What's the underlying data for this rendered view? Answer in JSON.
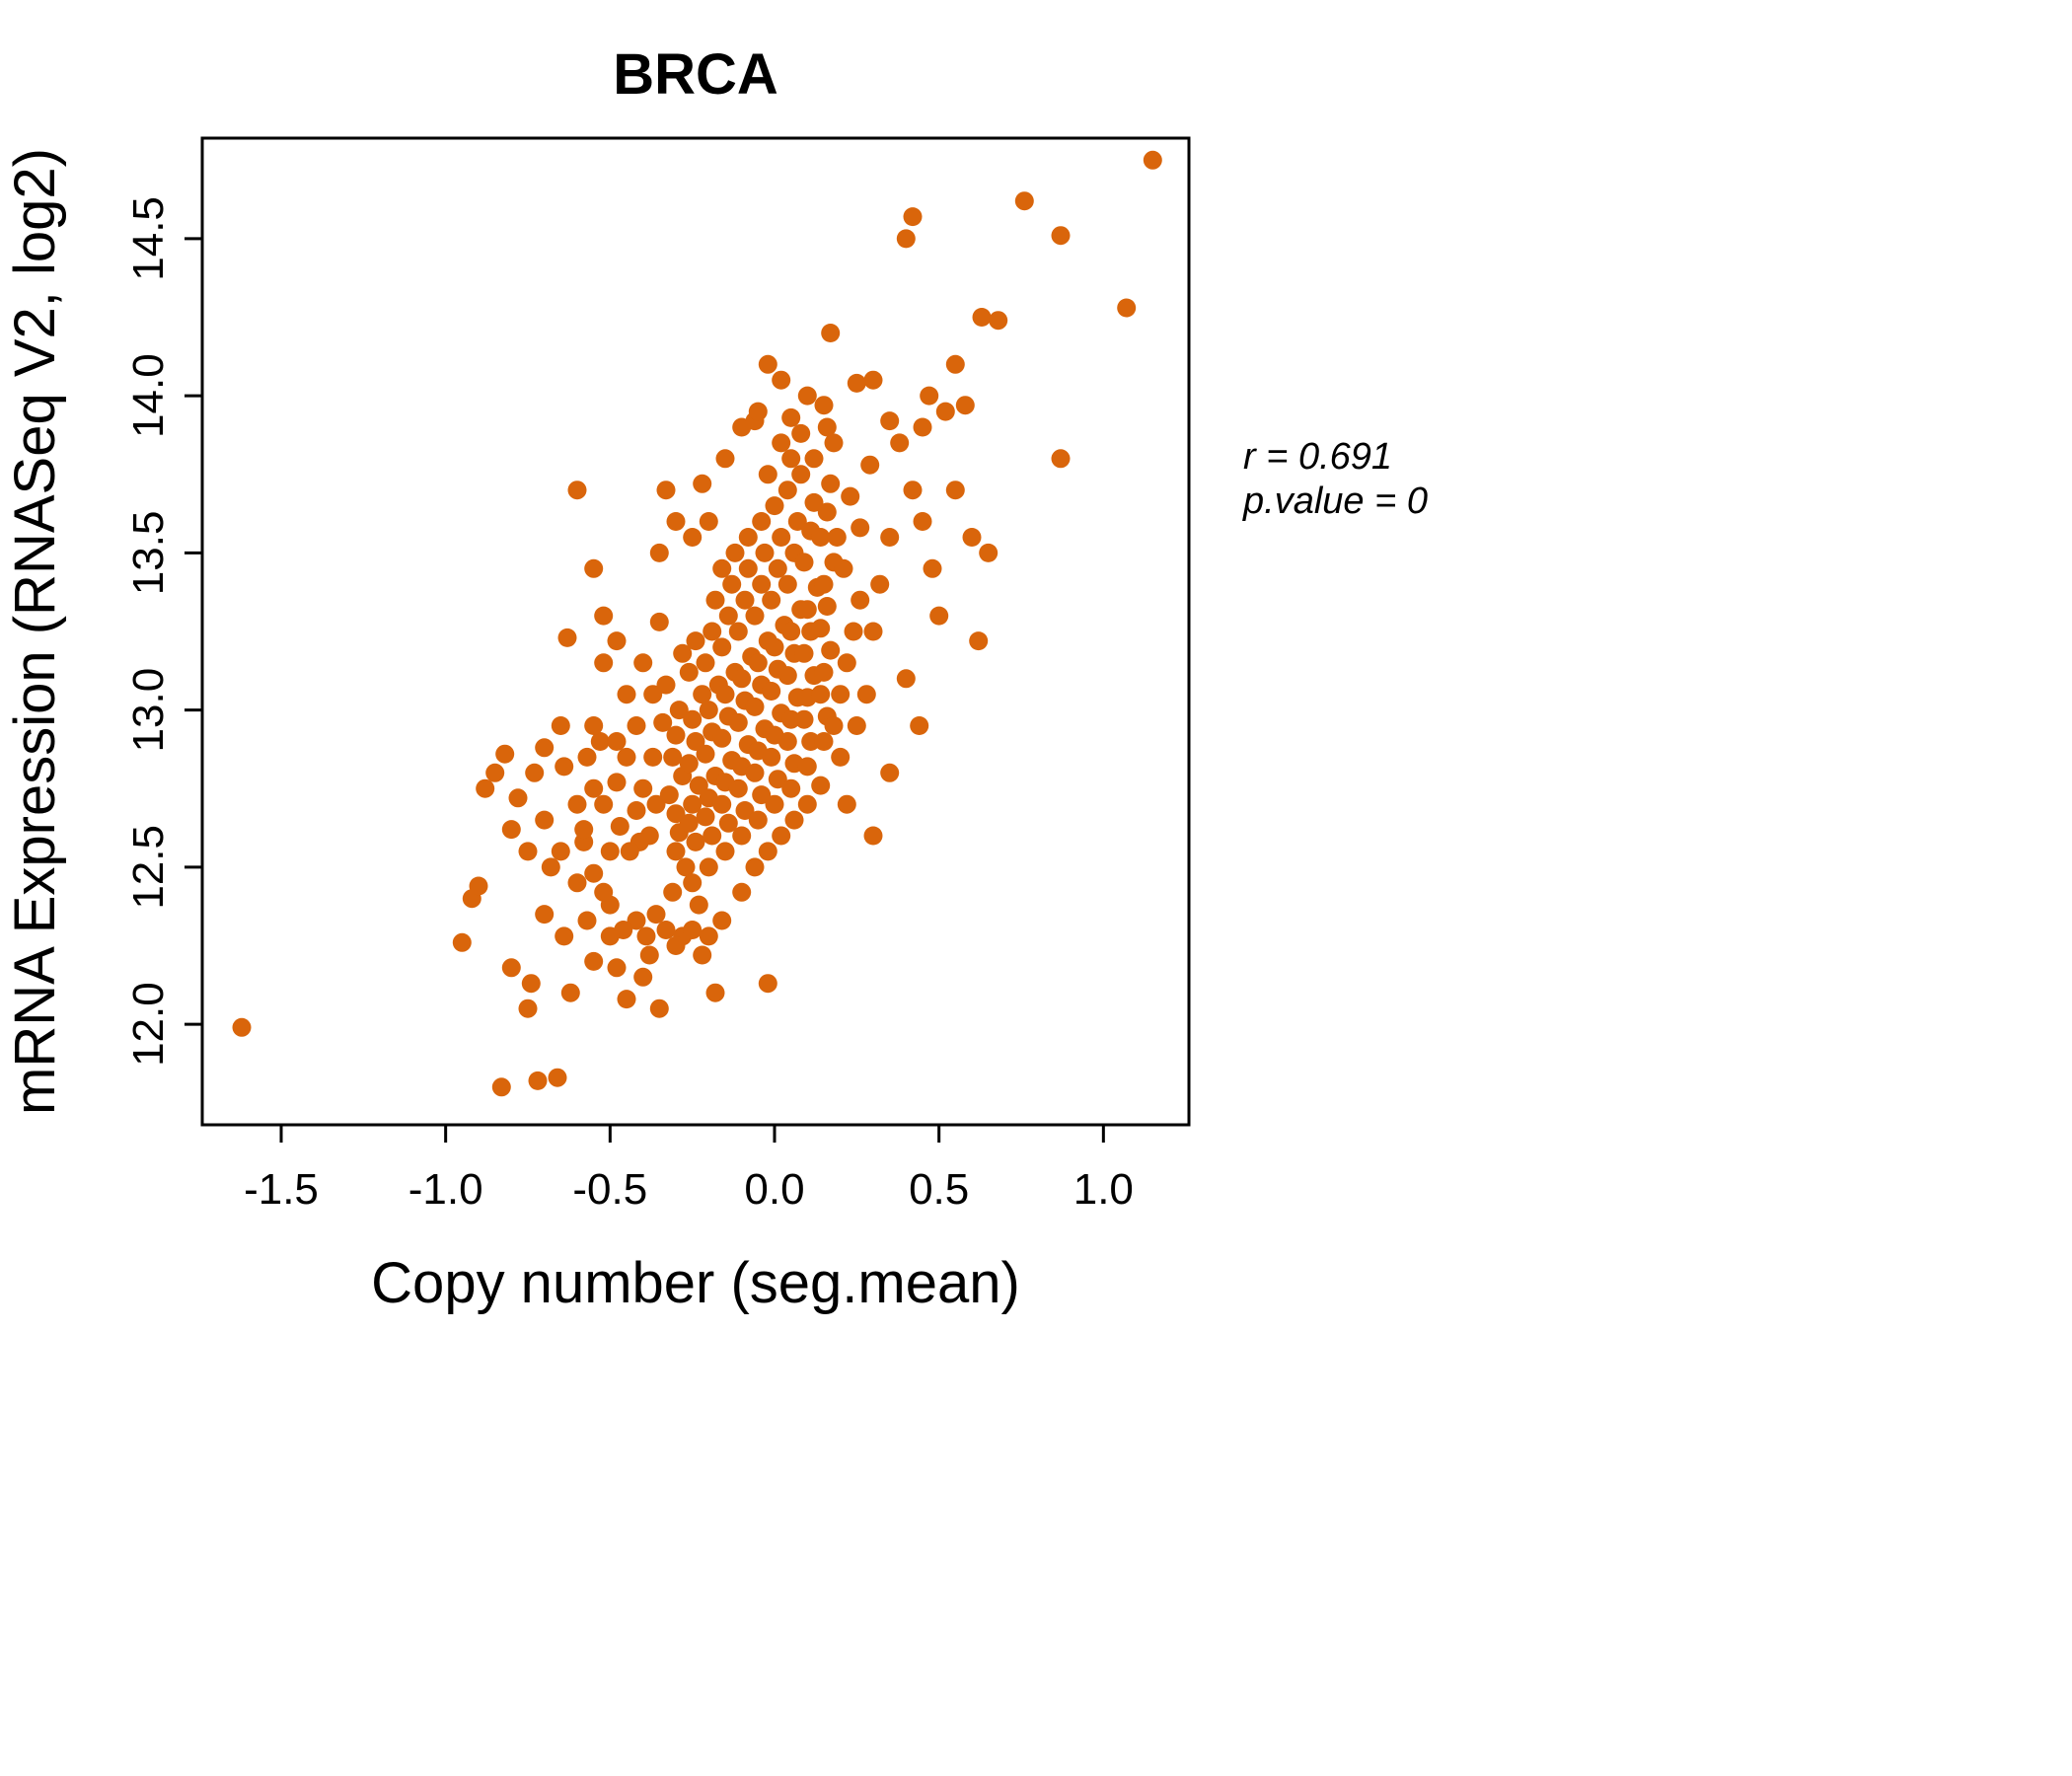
{
  "title": "BRCA",
  "accent_color": "#D9650B",
  "annotation": {
    "line1": "r = 0.691",
    "line2": "p.value = 0"
  },
  "chart_data": {
    "type": "scatter",
    "title": "BRCA",
    "xlabel": "Copy number (seg.mean)",
    "ylabel": "mRNA Expression (RNASeq V2, log2)",
    "x_ticks": [
      -1.5,
      -1.0,
      -0.5,
      0.0,
      0.5,
      1.0
    ],
    "y_ticks": [
      12.0,
      12.5,
      13.0,
      13.5,
      14.0,
      14.5
    ],
    "xlim": [
      -1.74,
      1.26
    ],
    "ylim": [
      11.68,
      14.82
    ],
    "legend": "none",
    "grid": false,
    "point_color": "#D9650B",
    "correlation_r": 0.691,
    "p_value": 0,
    "points": [
      [
        -1.62,
        11.99
      ],
      [
        -0.31,
        12.42
      ],
      [
        -0.3,
        12.55
      ],
      [
        -0.29,
        12.61
      ],
      [
        -0.3,
        12.67
      ],
      [
        -0.32,
        12.73
      ],
      [
        -0.28,
        12.79
      ],
      [
        -0.31,
        12.85
      ],
      [
        -0.3,
        12.92
      ],
      [
        -0.29,
        13.0
      ],
      [
        -0.33,
        13.08
      ],
      [
        -0.27,
        12.5
      ],
      [
        -0.28,
        13.18
      ],
      [
        -0.25,
        12.45
      ],
      [
        -0.24,
        12.58
      ],
      [
        -0.26,
        12.64
      ],
      [
        -0.25,
        12.7
      ],
      [
        -0.23,
        12.76
      ],
      [
        -0.26,
        12.83
      ],
      [
        -0.24,
        12.9
      ],
      [
        -0.25,
        12.97
      ],
      [
        -0.22,
        13.05
      ],
      [
        -0.26,
        13.12
      ],
      [
        -0.24,
        13.22
      ],
      [
        -0.23,
        12.38
      ],
      [
        -0.2,
        12.5
      ],
      [
        -0.19,
        12.6
      ],
      [
        -0.21,
        12.66
      ],
      [
        -0.2,
        12.72
      ],
      [
        -0.18,
        12.79
      ],
      [
        -0.21,
        12.86
      ],
      [
        -0.19,
        12.93
      ],
      [
        -0.2,
        13.0
      ],
      [
        -0.17,
        13.08
      ],
      [
        -0.21,
        13.15
      ],
      [
        -0.19,
        13.25
      ],
      [
        -0.18,
        13.35
      ],
      [
        -0.15,
        12.55
      ],
      [
        -0.14,
        12.64
      ],
      [
        -0.16,
        12.7
      ],
      [
        -0.15,
        12.77
      ],
      [
        -0.13,
        12.84
      ],
      [
        -0.16,
        12.91
      ],
      [
        -0.14,
        12.98
      ],
      [
        -0.15,
        13.05
      ],
      [
        -0.12,
        13.12
      ],
      [
        -0.16,
        13.2
      ],
      [
        -0.14,
        13.3
      ],
      [
        -0.13,
        13.4
      ],
      [
        -0.1,
        12.6
      ],
      [
        -0.09,
        12.68
      ],
      [
        -0.11,
        12.75
      ],
      [
        -0.1,
        12.82
      ],
      [
        -0.08,
        12.89
      ],
      [
        -0.11,
        12.96
      ],
      [
        -0.09,
        13.03
      ],
      [
        -0.1,
        13.1
      ],
      [
        -0.07,
        13.17
      ],
      [
        -0.11,
        13.25
      ],
      [
        -0.09,
        13.35
      ],
      [
        -0.08,
        13.45
      ],
      [
        -0.05,
        12.65
      ],
      [
        -0.04,
        12.73
      ],
      [
        -0.06,
        12.8
      ],
      [
        -0.05,
        12.87
      ],
      [
        -0.03,
        12.94
      ],
      [
        -0.06,
        13.01
      ],
      [
        -0.04,
        13.08
      ],
      [
        -0.05,
        13.15
      ],
      [
        -0.02,
        13.22
      ],
      [
        -0.06,
        13.3
      ],
      [
        -0.04,
        13.4
      ],
      [
        -0.03,
        13.5
      ],
      [
        0.0,
        12.7
      ],
      [
        0.01,
        12.78
      ],
      [
        -0.01,
        12.85
      ],
      [
        0.0,
        12.92
      ],
      [
        0.02,
        12.99
      ],
      [
        -0.01,
        13.06
      ],
      [
        0.01,
        13.13
      ],
      [
        0.0,
        13.2
      ],
      [
        0.03,
        13.27
      ],
      [
        -0.01,
        13.35
      ],
      [
        0.01,
        13.45
      ],
      [
        0.02,
        13.55
      ],
      [
        0.05,
        12.75
      ],
      [
        0.06,
        12.83
      ],
      [
        0.04,
        12.9
      ],
      [
        0.05,
        12.97
      ],
      [
        0.07,
        13.04
      ],
      [
        0.04,
        13.11
      ],
      [
        0.06,
        13.18
      ],
      [
        0.05,
        13.25
      ],
      [
        0.08,
        13.32
      ],
      [
        0.04,
        13.4
      ],
      [
        0.06,
        13.5
      ],
      [
        0.07,
        13.6
      ],
      [
        0.1,
        12.82
      ],
      [
        0.11,
        12.9
      ],
      [
        0.09,
        12.97
      ],
      [
        0.1,
        13.04
      ],
      [
        0.12,
        13.11
      ],
      [
        0.09,
        13.18
      ],
      [
        0.11,
        13.25
      ],
      [
        0.1,
        13.32
      ],
      [
        0.13,
        13.39
      ],
      [
        0.09,
        13.47
      ],
      [
        0.11,
        13.57
      ],
      [
        0.12,
        13.66
      ],
      [
        0.15,
        12.9
      ],
      [
        0.16,
        12.98
      ],
      [
        0.14,
        13.05
      ],
      [
        0.15,
        13.12
      ],
      [
        0.17,
        13.19
      ],
      [
        0.14,
        13.26
      ],
      [
        0.16,
        13.33
      ],
      [
        0.15,
        13.4
      ],
      [
        0.18,
        13.47
      ],
      [
        0.14,
        13.55
      ],
      [
        0.16,
        13.63
      ],
      [
        0.17,
        13.72
      ],
      [
        -0.34,
        12.96
      ],
      [
        -0.36,
        12.7
      ],
      [
        -0.37,
        12.85
      ],
      [
        -0.38,
        12.6
      ],
      [
        -0.4,
        12.75
      ],
      [
        -0.41,
        12.58
      ],
      [
        -0.42,
        12.68
      ],
      [
        -0.44,
        12.55
      ],
      [
        -0.45,
        12.85
      ],
      [
        -0.47,
        12.63
      ],
      [
        -0.48,
        12.77
      ],
      [
        -0.5,
        12.55
      ],
      [
        -0.52,
        12.7
      ],
      [
        -0.53,
        12.9
      ],
      [
        -0.55,
        12.75
      ],
      [
        -0.57,
        12.85
      ],
      [
        -0.58,
        12.58
      ],
      [
        -0.6,
        12.7
      ],
      [
        -0.35,
        13.28
      ],
      [
        -0.37,
        13.05
      ],
      [
        -0.4,
        13.15
      ],
      [
        -0.42,
        12.95
      ],
      [
        -0.45,
        13.05
      ],
      [
        -0.33,
        12.3
      ],
      [
        -0.36,
        12.35
      ],
      [
        -0.39,
        12.28
      ],
      [
        -0.42,
        12.33
      ],
      [
        -0.46,
        12.3
      ],
      [
        -0.5,
        12.38
      ],
      [
        -0.28,
        12.28
      ],
      [
        -0.22,
        12.22
      ],
      [
        -0.16,
        12.33
      ],
      [
        -0.1,
        12.42
      ],
      [
        -0.06,
        12.5
      ],
      [
        -0.02,
        12.55
      ],
      [
        0.02,
        12.6
      ],
      [
        0.06,
        12.65
      ],
      [
        0.1,
        12.7
      ],
      [
        0.14,
        12.76
      ],
      [
        0.18,
        12.95
      ],
      [
        0.2,
        13.05
      ],
      [
        0.22,
        13.15
      ],
      [
        0.24,
        13.25
      ],
      [
        0.26,
        13.35
      ],
      [
        0.2,
        12.85
      ],
      [
        0.22,
        12.7
      ],
      [
        0.25,
        12.95
      ],
      [
        0.28,
        13.05
      ],
      [
        0.3,
        13.25
      ],
      [
        0.32,
        13.4
      ],
      [
        0.35,
        13.55
      ],
      [
        0.19,
        13.55
      ],
      [
        0.21,
        13.45
      ],
      [
        0.23,
        13.68
      ],
      [
        0.26,
        13.58
      ],
      [
        0.29,
        13.78
      ],
      [
        0.18,
        13.85
      ],
      [
        0.16,
        13.9
      ],
      [
        0.12,
        13.8
      ],
      [
        0.08,
        13.75
      ],
      [
        0.04,
        13.7
      ],
      [
        0.0,
        13.65
      ],
      [
        -0.04,
        13.6
      ],
      [
        -0.08,
        13.55
      ],
      [
        -0.12,
        13.5
      ],
      [
        -0.16,
        13.45
      ],
      [
        -0.02,
        13.75
      ],
      [
        0.02,
        13.85
      ],
      [
        -0.06,
        13.92
      ],
      [
        0.05,
        13.8
      ],
      [
        -0.52,
        13.3
      ],
      [
        -0.48,
        13.22
      ],
      [
        -0.55,
        13.45
      ],
      [
        -0.6,
        13.7
      ],
      [
        -0.33,
        13.7
      ],
      [
        -0.3,
        13.6
      ],
      [
        -0.25,
        13.55
      ],
      [
        -0.2,
        13.6
      ],
      [
        -0.35,
        13.5
      ],
      [
        -0.22,
        13.72
      ],
      [
        0.38,
        13.85
      ],
      [
        0.42,
        13.7
      ],
      [
        0.45,
        13.9
      ],
      [
        0.48,
        13.45
      ],
      [
        0.5,
        13.3
      ],
      [
        0.55,
        13.7
      ],
      [
        0.4,
        13.1
      ],
      [
        0.44,
        12.95
      ],
      [
        0.35,
        12.8
      ],
      [
        0.3,
        12.6
      ],
      [
        0.6,
        13.55
      ],
      [
        0.62,
        13.22
      ],
      [
        0.65,
        13.5
      ],
      [
        0.47,
        14.0
      ],
      [
        0.52,
        13.95
      ],
      [
        0.58,
        13.97
      ],
      [
        0.55,
        14.1
      ],
      [
        0.63,
        14.25
      ],
      [
        0.68,
        14.24
      ],
      [
        0.76,
        14.62
      ],
      [
        0.87,
        14.51
      ],
      [
        0.87,
        13.8
      ],
      [
        1.07,
        14.28
      ],
      [
        1.15,
        14.75
      ],
      [
        0.4,
        14.5
      ],
      [
        0.42,
        14.57
      ],
      [
        0.17,
        14.2
      ],
      [
        0.3,
        14.05
      ],
      [
        0.25,
        14.04
      ],
      [
        0.35,
        13.92
      ],
      [
        0.45,
        13.6
      ],
      [
        -0.02,
        14.1
      ],
      [
        0.02,
        14.05
      ],
      [
        -0.05,
        13.95
      ],
      [
        0.05,
        13.93
      ],
      [
        0.1,
        14.0
      ],
      [
        0.15,
        13.97
      ],
      [
        -0.1,
        13.9
      ],
      [
        -0.15,
        13.8
      ],
      [
        0.08,
        13.88
      ],
      [
        -0.83,
        11.8
      ],
      [
        -0.72,
        11.82
      ],
      [
        -0.66,
        11.83
      ],
      [
        -0.75,
        12.05
      ],
      [
        -0.62,
        12.1
      ],
      [
        -0.95,
        12.26
      ],
      [
        -0.92,
        12.4
      ],
      [
        -0.9,
        12.44
      ],
      [
        -0.8,
        12.18
      ],
      [
        -0.74,
        12.13
      ],
      [
        -0.45,
        12.08
      ],
      [
        -0.4,
        12.15
      ],
      [
        -0.35,
        12.05
      ],
      [
        -0.18,
        12.1
      ],
      [
        -0.02,
        12.13
      ],
      [
        -0.55,
        12.2
      ],
      [
        -0.5,
        12.28
      ],
      [
        -0.3,
        12.25
      ],
      [
        -0.25,
        12.3
      ],
      [
        -0.2,
        12.28
      ],
      [
        -0.57,
        12.33
      ],
      [
        -0.64,
        12.28
      ],
      [
        -0.7,
        12.35
      ],
      [
        -0.48,
        12.18
      ],
      [
        -0.38,
        12.22
      ],
      [
        -0.85,
        12.8
      ],
      [
        -0.82,
        12.86
      ],
      [
        -0.78,
        12.72
      ],
      [
        -0.8,
        12.62
      ],
      [
        -0.73,
        12.8
      ],
      [
        -0.7,
        12.65
      ],
      [
        -0.65,
        12.55
      ],
      [
        -0.64,
        12.82
      ],
      [
        -0.58,
        12.62
      ],
      [
        -0.6,
        12.45
      ],
      [
        -0.55,
        12.48
      ],
      [
        -0.52,
        12.42
      ],
      [
        -0.68,
        12.5
      ],
      [
        -0.75,
        12.55
      ],
      [
        -0.88,
        12.75
      ],
      [
        -0.63,
        13.23
      ],
      [
        -0.52,
        13.15
      ],
      [
        -0.55,
        12.95
      ],
      [
        -0.48,
        12.9
      ],
      [
        -0.65,
        12.95
      ],
      [
        -0.7,
        12.88
      ]
    ]
  }
}
